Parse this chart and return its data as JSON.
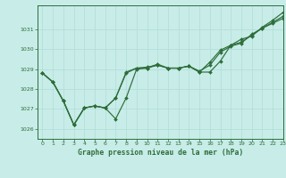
{
  "title": "Graphe pression niveau de la mer (hPa)",
  "bg_color": "#c8ece8",
  "grid_color": "#b0ddd8",
  "line_color": "#2d6e3a",
  "marker_color": "#2d6e3a",
  "xlim": [
    -0.5,
    23
  ],
  "ylim": [
    1025.5,
    1032.2
  ],
  "yticks": [
    1026,
    1027,
    1028,
    1029,
    1030,
    1031
  ],
  "xticks": [
    0,
    1,
    2,
    3,
    4,
    5,
    6,
    7,
    8,
    9,
    10,
    11,
    12,
    13,
    14,
    15,
    16,
    17,
    18,
    19,
    20,
    21,
    22,
    23
  ],
  "series": [
    [
      1028.8,
      1028.35,
      1027.4,
      1026.2,
      1027.05,
      1027.15,
      1027.05,
      1026.5,
      1027.55,
      1029.0,
      1029.05,
      1029.25,
      1029.05,
      1029.05,
      1029.15,
      1028.85,
      1028.85,
      1029.4,
      1030.2,
      1030.5,
      1030.65,
      1031.1,
      1031.45,
      1031.85
    ],
    [
      1028.8,
      1028.35,
      1027.4,
      1026.2,
      1027.05,
      1027.15,
      1027.05,
      1027.55,
      1028.85,
      1029.05,
      1029.05,
      1029.2,
      1029.05,
      1029.05,
      1029.15,
      1028.85,
      1029.35,
      1029.95,
      1030.2,
      1030.35,
      1030.7,
      1031.05,
      1031.35,
      1031.65
    ],
    [
      1028.8,
      1028.35,
      1027.4,
      1026.2,
      1027.05,
      1027.15,
      1027.05,
      1027.55,
      1028.8,
      1029.05,
      1029.1,
      1029.2,
      1029.05,
      1029.05,
      1029.15,
      1028.9,
      1029.2,
      1029.85,
      1030.15,
      1030.3,
      1030.75,
      1031.05,
      1031.3,
      1031.55
    ]
  ],
  "x_series": [
    0,
    1,
    2,
    3,
    4,
    5,
    6,
    7,
    8,
    9,
    10,
    11,
    12,
    13,
    14,
    15,
    16,
    17,
    18,
    19,
    20,
    21,
    22,
    23
  ]
}
